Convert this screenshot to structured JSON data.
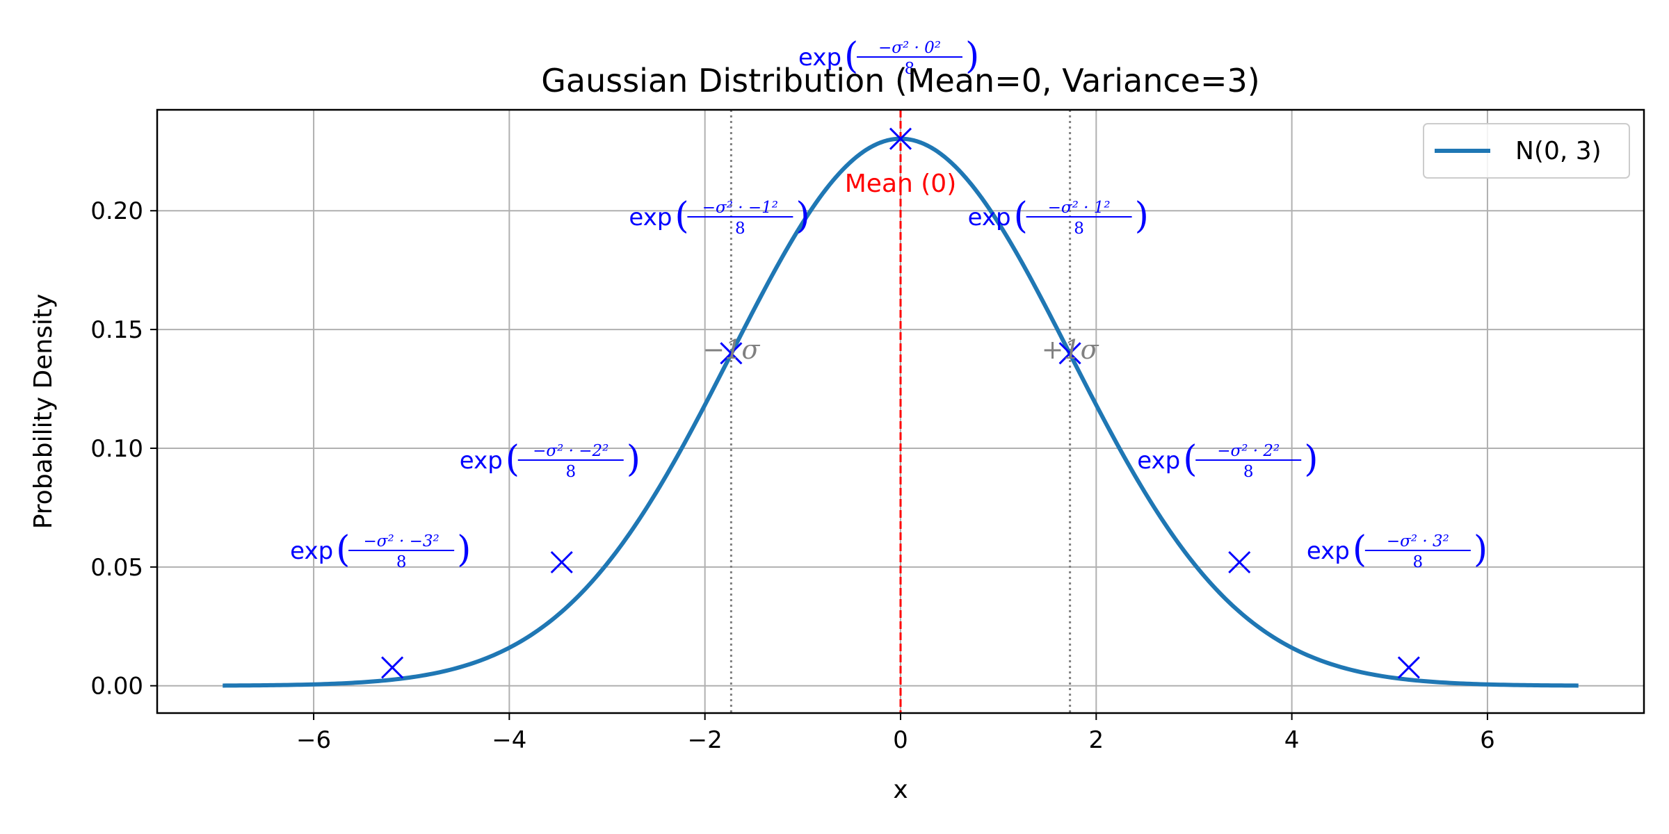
{
  "chart_data": {
    "type": "line",
    "title": "Gaussian Distribution (Mean=0, Variance=3)",
    "xlabel": "x",
    "ylabel": "Probability Density",
    "xlim": [
      -7.6,
      7.6
    ],
    "ylim": [
      -0.0115,
      0.2425
    ],
    "xticks": [
      -6,
      -4,
      -2,
      0,
      2,
      4,
      6
    ],
    "xtick_labels": [
      "−6",
      "−4",
      "−2",
      "0",
      "2",
      "4",
      "6"
    ],
    "yticks": [
      0.0,
      0.05,
      0.1,
      0.15,
      0.2
    ],
    "ytick_labels": [
      "0.00",
      "0.05",
      "0.10",
      "0.15",
      "0.20"
    ],
    "grid": true,
    "legend": {
      "placement": "upper right",
      "entries": [
        "N(0, 3)"
      ]
    },
    "series": [
      {
        "name": "N(0, 3)",
        "mean": 0,
        "variance": 3,
        "x_range": [
          -6.93,
          6.93
        ],
        "color": "#1f77b4"
      }
    ],
    "markers": {
      "color": "#0000ff",
      "points": [
        {
          "x": -5.196,
          "y": 0.0077
        },
        {
          "x": -3.464,
          "y": 0.052
        },
        {
          "x": -1.732,
          "y": 0.14
        },
        {
          "x": 0.0,
          "y": 0.2303
        },
        {
          "x": 1.732,
          "y": 0.14
        },
        {
          "x": 3.464,
          "y": 0.052
        },
        {
          "x": 5.196,
          "y": 0.0077
        }
      ]
    },
    "mean_line": {
      "x": 0,
      "label": "Mean (0)",
      "color": "#ff0000"
    },
    "sigma_lines": [
      {
        "x": -1.732,
        "label": "−1σ",
        "color": "#808080"
      },
      {
        "x": 1.732,
        "label": "+1σ",
        "color": "#808080"
      }
    ],
    "annotations": [
      {
        "x": -5.196,
        "y": 0.0077,
        "prefix": "exp",
        "numerator": "−σ² · −3²",
        "denominator": "8"
      },
      {
        "x": -3.464,
        "y": 0.052,
        "prefix": "exp",
        "numerator": "−σ² · −2²",
        "denominator": "8"
      },
      {
        "x": -1.732,
        "y": 0.14,
        "prefix": "exp",
        "numerator": "−σ² · −1²",
        "denominator": "8"
      },
      {
        "x": 0.0,
        "y": 0.2303,
        "prefix": "exp",
        "numerator": "−σ² · 0²",
        "denominator": "8"
      },
      {
        "x": 1.732,
        "y": 0.14,
        "prefix": "exp",
        "numerator": "−σ² · 1²",
        "denominator": "8"
      },
      {
        "x": 3.464,
        "y": 0.052,
        "prefix": "exp",
        "numerator": "−σ² · 2²",
        "denominator": "8"
      },
      {
        "x": 5.196,
        "y": 0.0077,
        "prefix": "exp",
        "numerator": "−σ² · 3²",
        "denominator": "8"
      }
    ]
  }
}
